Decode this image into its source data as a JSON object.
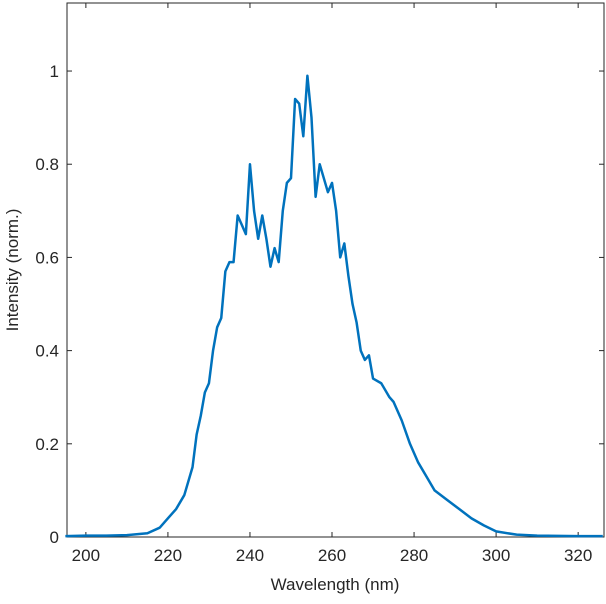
{
  "chart_data": {
    "type": "line",
    "xlabel": "Wavelength (nm)",
    "ylabel": "Intensity (norm.)",
    "x": [
      195,
      200,
      205,
      210,
      215,
      218,
      220,
      222,
      224,
      226,
      227,
      228,
      229,
      230,
      231,
      232,
      233,
      234,
      235,
      236,
      237,
      238,
      239,
      240,
      241,
      242,
      243,
      244,
      245,
      246,
      247,
      248,
      249,
      250,
      251,
      252,
      253,
      254,
      255,
      256,
      257,
      258,
      259,
      260,
      261,
      262,
      263,
      264,
      265,
      266,
      267,
      268,
      269,
      270,
      272,
      274,
      275,
      277,
      279,
      281,
      283,
      285,
      288,
      291,
      294,
      297,
      300,
      305,
      310,
      320,
      326
    ],
    "series": [
      {
        "name": "Intensity",
        "color": "#0072bd",
        "values": [
          0.002,
          0.003,
          0.003,
          0.004,
          0.008,
          0.02,
          0.04,
          0.06,
          0.09,
          0.15,
          0.22,
          0.26,
          0.31,
          0.33,
          0.4,
          0.45,
          0.47,
          0.57,
          0.59,
          0.59,
          0.69,
          0.67,
          0.65,
          0.8,
          0.7,
          0.64,
          0.69,
          0.64,
          0.58,
          0.62,
          0.59,
          0.7,
          0.76,
          0.77,
          0.94,
          0.93,
          0.86,
          0.99,
          0.9,
          0.73,
          0.8,
          0.77,
          0.74,
          0.76,
          0.7,
          0.6,
          0.63,
          0.56,
          0.5,
          0.46,
          0.4,
          0.38,
          0.39,
          0.34,
          0.33,
          0.3,
          0.29,
          0.25,
          0.2,
          0.16,
          0.13,
          0.1,
          0.08,
          0.06,
          0.04,
          0.025,
          0.012,
          0.005,
          0.003,
          0.002,
          0.002
        ]
      }
    ],
    "xlim": [
      195.4,
      326.3
    ],
    "ylim": [
      0,
      1.146
    ],
    "xticks": [
      200,
      220,
      240,
      260,
      280,
      300,
      320
    ],
    "yticks": [
      0,
      0.2,
      0.4,
      0.6,
      0.8,
      1
    ]
  }
}
